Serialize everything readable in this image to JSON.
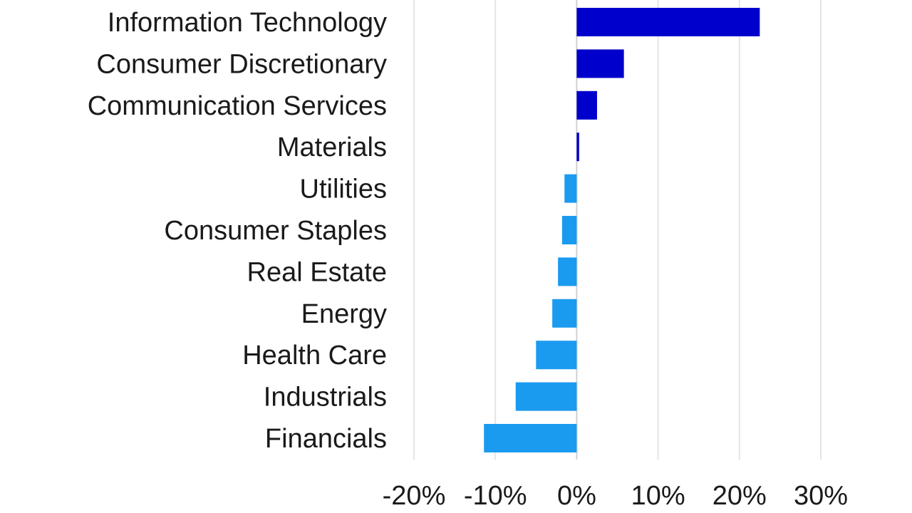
{
  "chart_data": {
    "type": "bar",
    "orientation": "horizontal",
    "categories": [
      "Information Technology",
      "Consumer Discretionary",
      "Communication Services",
      "Materials",
      "Utilities",
      "Consumer Staples",
      "Real Estate",
      "Energy",
      "Health Care",
      "Industrials",
      "Financials"
    ],
    "values": [
      22.5,
      5.8,
      2.5,
      0.3,
      -1.5,
      -1.8,
      -2.3,
      -3.0,
      -5.0,
      -7.5,
      -11.4
    ],
    "bar_colors": {
      "positive": "#0000cc",
      "negative": "#1a9bf0"
    },
    "xlim": [
      -20,
      30
    ],
    "xticks": [
      -20,
      -10,
      0,
      10,
      20,
      30
    ],
    "xtick_labels": [
      "-20%",
      "-10%",
      "0%",
      "10%",
      "20%",
      "30%"
    ],
    "grid": true,
    "legend": "none"
  }
}
